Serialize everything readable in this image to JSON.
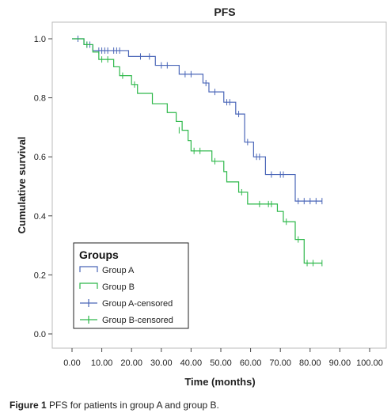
{
  "caption": {
    "label": "Figure 1",
    "text": "PFS for patients in group A and group B."
  },
  "chart_data": {
    "type": "line",
    "subtype": "kaplan-meier step plot",
    "title": "PFS",
    "xlabel": "Time (months)",
    "ylabel": "Cumulative survival",
    "xlim": [
      0,
      100
    ],
    "ylim": [
      0,
      1.0
    ],
    "x_ticks": [
      "0.00",
      "10.00",
      "20.00",
      "30.00",
      "40.00",
      "50.00",
      "60.00",
      "70.00",
      "80.00",
      "90.00",
      "100.00"
    ],
    "y_ticks": [
      "0.0",
      "0.2",
      "0.4",
      "0.6",
      "0.8",
      "1.0"
    ],
    "legend": {
      "title": "Groups",
      "placement": "bottom-left",
      "entries": [
        "Group A",
        "Group B",
        "Group A-censored",
        "Group B-censored"
      ]
    },
    "colors": {
      "group_a": "#4a66b8",
      "group_b": "#2db84a"
    },
    "series": [
      {
        "name": "Group A",
        "steps": [
          [
            0,
            1.0
          ],
          [
            4,
            0.98
          ],
          [
            7,
            0.96
          ],
          [
            19,
            0.94
          ],
          [
            28,
            0.91
          ],
          [
            36,
            0.88
          ],
          [
            44,
            0.85
          ],
          [
            46,
            0.82
          ],
          [
            51,
            0.785
          ],
          [
            55,
            0.745
          ],
          [
            58,
            0.65
          ],
          [
            61,
            0.6
          ],
          [
            65,
            0.54
          ],
          [
            75,
            0.45
          ],
          [
            84,
            0.45
          ]
        ],
        "censored": [
          [
            2,
            1.0
          ],
          [
            5,
            0.98
          ],
          [
            6,
            0.98
          ],
          [
            9,
            0.96
          ],
          [
            10,
            0.96
          ],
          [
            11,
            0.96
          ],
          [
            12,
            0.96
          ],
          [
            14,
            0.96
          ],
          [
            15,
            0.96
          ],
          [
            16,
            0.96
          ],
          [
            23,
            0.94
          ],
          [
            26,
            0.94
          ],
          [
            30,
            0.91
          ],
          [
            32,
            0.91
          ],
          [
            38,
            0.88
          ],
          [
            40,
            0.88
          ],
          [
            45,
            0.85
          ],
          [
            48,
            0.82
          ],
          [
            52,
            0.785
          ],
          [
            53,
            0.785
          ],
          [
            56,
            0.745
          ],
          [
            59,
            0.65
          ],
          [
            62,
            0.6
          ],
          [
            63,
            0.6
          ],
          [
            67,
            0.54
          ],
          [
            70,
            0.54
          ],
          [
            71,
            0.54
          ],
          [
            76,
            0.45
          ],
          [
            78,
            0.45
          ],
          [
            80,
            0.45
          ],
          [
            82,
            0.45
          ],
          [
            84,
            0.45
          ]
        ]
      },
      {
        "name": "Group B",
        "steps": [
          [
            0,
            1.0
          ],
          [
            4,
            0.98
          ],
          [
            7,
            0.955
          ],
          [
            9,
            0.93
          ],
          [
            14,
            0.905
          ],
          [
            16,
            0.875
          ],
          [
            20,
            0.845
          ],
          [
            22,
            0.815
          ],
          [
            27,
            0.78
          ],
          [
            32,
            0.75
          ],
          [
            35,
            0.72
          ],
          [
            37,
            0.69
          ],
          [
            39,
            0.655
          ],
          [
            40,
            0.62
          ],
          [
            47,
            0.585
          ],
          [
            51,
            0.55
          ],
          [
            52,
            0.515
          ],
          [
            56,
            0.48
          ],
          [
            59,
            0.44
          ],
          [
            69,
            0.415
          ],
          [
            71,
            0.38
          ],
          [
            75,
            0.32
          ],
          [
            78,
            0.24
          ],
          [
            84,
            0.24
          ]
        ],
        "censored": [
          [
            5,
            0.98
          ],
          [
            10,
            0.93
          ],
          [
            12,
            0.93
          ],
          [
            17,
            0.875
          ],
          [
            21,
            0.845
          ],
          [
            36,
            0.69
          ],
          [
            41,
            0.62
          ],
          [
            43,
            0.62
          ],
          [
            48,
            0.585
          ],
          [
            57,
            0.48
          ],
          [
            63,
            0.44
          ],
          [
            66,
            0.44
          ],
          [
            67,
            0.44
          ],
          [
            72,
            0.38
          ],
          [
            76,
            0.32
          ],
          [
            79,
            0.24
          ],
          [
            81,
            0.24
          ],
          [
            84,
            0.24
          ]
        ]
      }
    ]
  }
}
